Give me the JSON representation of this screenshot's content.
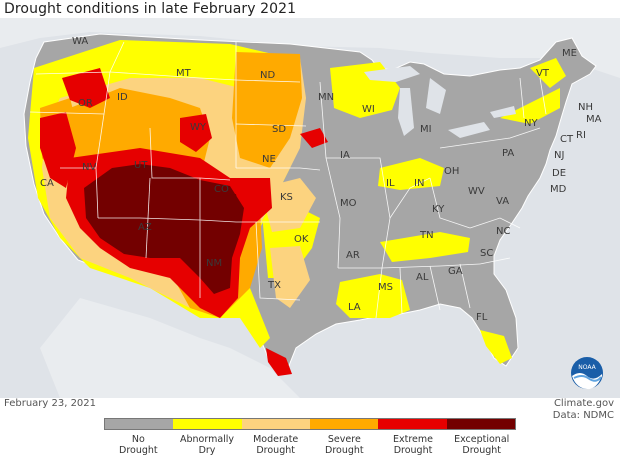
{
  "title": "Drought conditions in late February 2021",
  "date": "February 23, 2021",
  "credit": {
    "site": "Climate.gov",
    "data": "Data: NDMC"
  },
  "colors": {
    "water": "#dfe3e8",
    "neighbor_land": "#e3e6ea",
    "no_drought": "#a6a6a6",
    "d0": "#ffff00",
    "d1": "#fcd37f",
    "d2": "#ffaa00",
    "d3": "#e60000",
    "d4": "#730000",
    "border": "#ffffff"
  },
  "legend": [
    {
      "label": "No\nDrought",
      "color": "#a6a6a6"
    },
    {
      "label": "Abnormally\nDry",
      "color": "#ffff00"
    },
    {
      "label": "Moderate\nDrought",
      "color": "#fcd37f"
    },
    {
      "label": "Severe\nDrought",
      "color": "#ffaa00"
    },
    {
      "label": "Extreme\nDrought",
      "color": "#e60000"
    },
    {
      "label": "Exceptional\nDrought",
      "color": "#730000"
    }
  ],
  "states": [
    "WA",
    "OR",
    "CA",
    "ID",
    "NV",
    "MT",
    "WY",
    "UT",
    "AZ",
    "CO",
    "NM",
    "ND",
    "SD",
    "NE",
    "KS",
    "OK",
    "TX",
    "MN",
    "IA",
    "MO",
    "AR",
    "LA",
    "WI",
    "IL",
    "MI",
    "IN",
    "KY",
    "TN",
    "MS",
    "AL",
    "GA",
    "FL",
    "OH",
    "WV",
    "VA",
    "NC",
    "SC",
    "PA",
    "NY",
    "VT",
    "ME",
    "NH",
    "MA",
    "CT",
    "RI",
    "NJ",
    "DE",
    "MD"
  ],
  "logo": "noaa-logo"
}
